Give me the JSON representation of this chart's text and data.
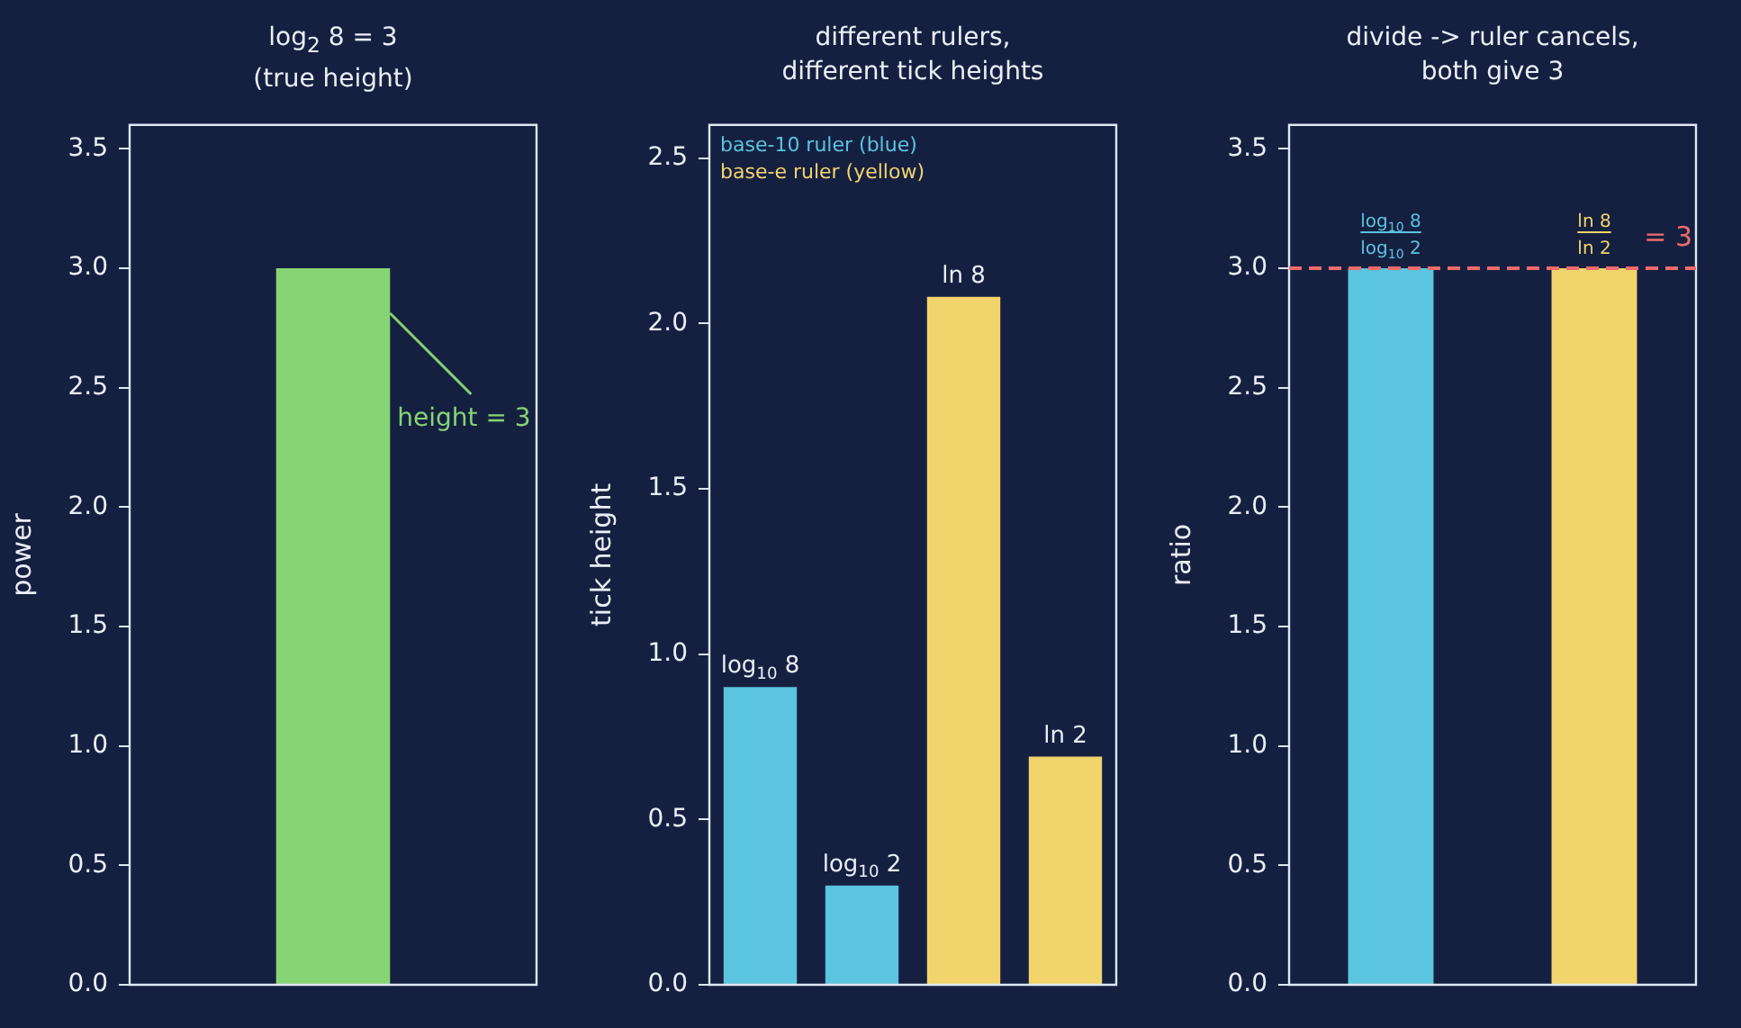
{
  "chart_data": [
    {
      "type": "bar",
      "title": "log$_{2}$ 8 = 3\n(true height)",
      "ylabel": "power",
      "categories": [
        null
      ],
      "values": [
        3
      ],
      "color": "#86d474",
      "ylim": [
        0,
        3.6
      ],
      "yticks": [
        {
          "value": 0,
          "label": "0.0"
        },
        0.5,
        {
          "value": 1,
          "label": "1.0"
        },
        1.5,
        {
          "value": 2,
          "label": "2.0"
        },
        2.5,
        {
          "value": 3,
          "label": "3.0"
        },
        3.5
      ],
      "annotations": [
        "height = 3"
      ]
    },
    {
      "type": "bar",
      "title": "different rulers,\ndifferent tick heights",
      "ylabel": "tick height",
      "categories": [
        null,
        null,
        null,
        null
      ],
      "values": [
        0.9,
        0.3,
        2.08,
        0.69
      ],
      "colors": [
        "#5bc4df",
        "#5bc4df",
        "#f2d46d",
        "#f2d46d"
      ],
      "value_labels": [
        "log$_{10}$ 8",
        "log$_{10}$ 2",
        "ln 8",
        "ln 2"
      ],
      "annotations": [
        "base-10 ruler (blue)",
        "base-e ruler (yellow)"
      ],
      "ylim": [
        0,
        2.6
      ],
      "yticks": [
        {
          "value": 0,
          "label": "0.0"
        },
        0.5,
        {
          "value": 1,
          "label": "1.0"
        },
        1.5,
        {
          "value": 2,
          "label": "2.0"
        },
        2.5
      ]
    },
    {
      "type": "bar",
      "title": "divide -> ruler cancels,\nboth give 3",
      "ylabel": "ratio",
      "categories": [
        null,
        null
      ],
      "values": [
        3,
        3
      ],
      "colors": [
        "#5bc4df",
        "#f2d46d"
      ],
      "value_labels": [
        "log$_{10}$ 8\nlog$_{10}$ 2",
        "ln 8\nln 2"
      ],
      "ref_lines": [
        {
          "axis": "y",
          "value": 3,
          "label": "= 3",
          "color": "#ef6b6b",
          "line_style": "dashed"
        }
      ],
      "ylim": [
        0,
        3.6
      ],
      "yticks": [
        {
          "value": 0,
          "label": "0.0"
        },
        0.5,
        {
          "value": 1,
          "label": "1.0"
        },
        1.5,
        {
          "value": 2,
          "label": "2.0"
        },
        2.5,
        {
          "value": 3,
          "label": "3.0"
        },
        3.5
      ]
    }
  ]
}
